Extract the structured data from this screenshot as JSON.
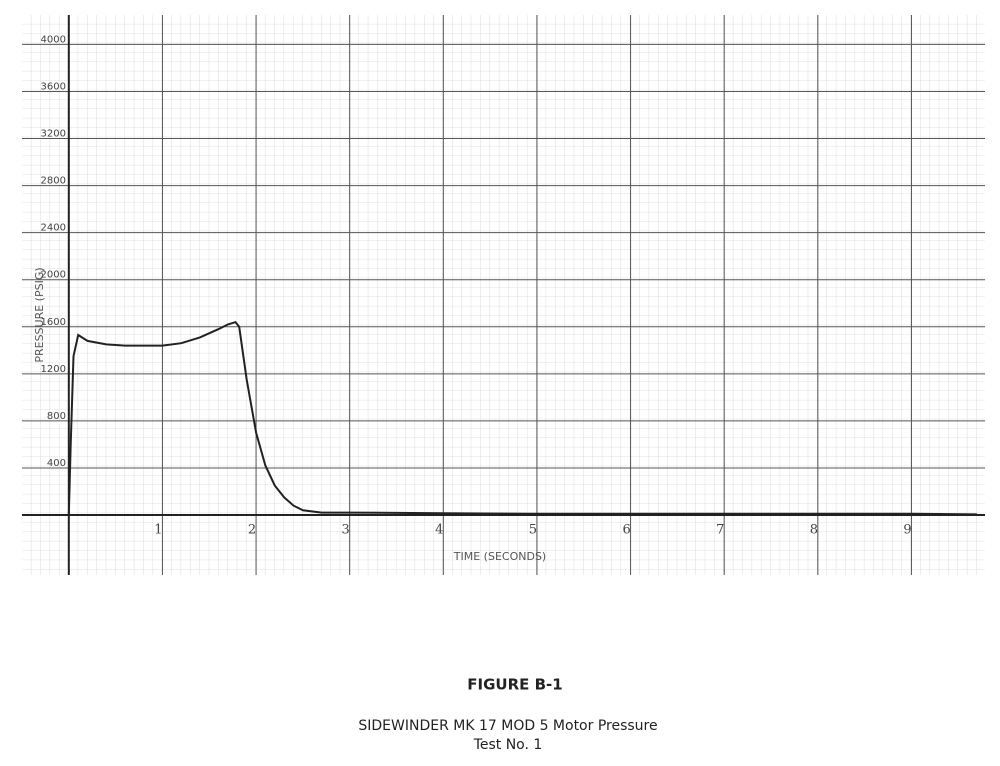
{
  "chart_data": {
    "type": "line",
    "y_axis_label": "PRESSURE (PSIG)",
    "x_axis_label": "TIME (SECONDS)",
    "x": [
      0,
      0.02,
      0.05,
      0.1,
      0.2,
      0.4,
      0.6,
      0.8,
      1.0,
      1.2,
      1.4,
      1.6,
      1.7,
      1.78,
      1.82,
      1.9,
      2.0,
      2.1,
      2.2,
      2.3,
      2.4,
      2.5,
      2.7,
      3,
      4,
      5,
      6,
      7,
      8,
      9,
      9.7
    ],
    "values": [
      0,
      600,
      1350,
      1530,
      1480,
      1450,
      1440,
      1440,
      1440,
      1460,
      1510,
      1580,
      1620,
      1640,
      1600,
      1150,
      700,
      420,
      250,
      150,
      80,
      40,
      20,
      20,
      15,
      10,
      10,
      10,
      10,
      10,
      5
    ],
    "color": "#222222",
    "xlim": [
      -0.5,
      9.7
    ],
    "ylim": [
      -340,
      4250
    ],
    "xticks": [
      1,
      2,
      3,
      4,
      5,
      6,
      7,
      8,
      9
    ],
    "yticks": [
      400,
      800,
      1200,
      1600,
      2000,
      2400,
      2800,
      3200,
      3600,
      4000
    ],
    "grid": true
  },
  "caption": {
    "figure": "FIGURE B-1",
    "title": "SIDEWINDER MK 17 MOD 5 Motor Pressure",
    "subtitle": "Test No. 1"
  }
}
